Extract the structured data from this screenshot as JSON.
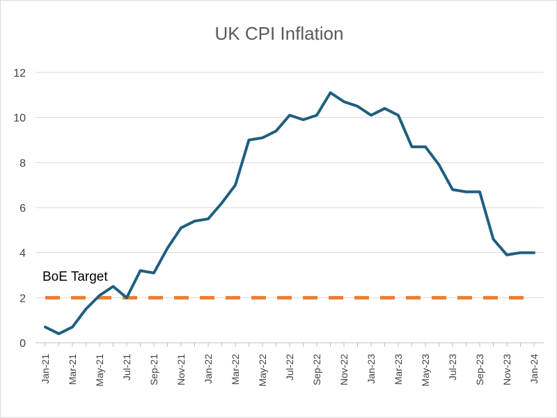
{
  "chart_data": {
    "type": "line",
    "title": "UK CPI Inflation",
    "xlabel": "",
    "ylabel": "",
    "ylim": [
      0,
      12
    ],
    "yticks": [
      "0",
      "2",
      "4",
      "6",
      "8",
      "10",
      "12"
    ],
    "grid": true,
    "x": [
      "Jan-21",
      "Feb-21",
      "Mar-21",
      "Apr-21",
      "May-21",
      "Jun-21",
      "Jul-21",
      "Aug-21",
      "Sep-21",
      "Oct-21",
      "Nov-21",
      "Dec-21",
      "Jan-22",
      "Feb-22",
      "Mar-22",
      "Apr-22",
      "May-22",
      "Jun-22",
      "Jul-22",
      "Aug-22",
      "Sep-22",
      "Oct-22",
      "Nov-22",
      "Dec-22",
      "Jan-23",
      "Feb-23",
      "Mar-23",
      "Apr-23",
      "May-23",
      "Jun-23",
      "Jul-23",
      "Aug-23",
      "Sep-23",
      "Oct-23",
      "Nov-23",
      "Dec-23",
      "Jan-24"
    ],
    "x_tick_labels": [
      "Jan-21",
      "Mar-21",
      "May-21",
      "Jul-21",
      "Sep-21",
      "Nov-21",
      "Jan-22",
      "Mar-22",
      "May-22",
      "Jul-22",
      "Sep-22",
      "Nov-22",
      "Jan-23",
      "Mar-23",
      "May-23",
      "Jul-23",
      "Sep-23",
      "Nov-23",
      "Jan-24"
    ],
    "series": [
      {
        "values": [
          0.7,
          0.4,
          0.7,
          1.5,
          2.1,
          2.5,
          2.0,
          3.2,
          3.1,
          4.2,
          5.1,
          5.4,
          5.5,
          6.2,
          7.0,
          9.0,
          9.1,
          9.4,
          10.1,
          9.9,
          10.1,
          11.1,
          10.7,
          10.5,
          10.1,
          10.4,
          10.1,
          8.7,
          8.7,
          7.9,
          6.8,
          6.7,
          6.7,
          4.6,
          3.9,
          4.0,
          4.0
        ],
        "color": "#1f5f7f"
      }
    ],
    "reference_lines": [
      {
        "label": "BoE Target",
        "value": 2,
        "color": "#ed7d31",
        "style": "dashed"
      }
    ]
  }
}
